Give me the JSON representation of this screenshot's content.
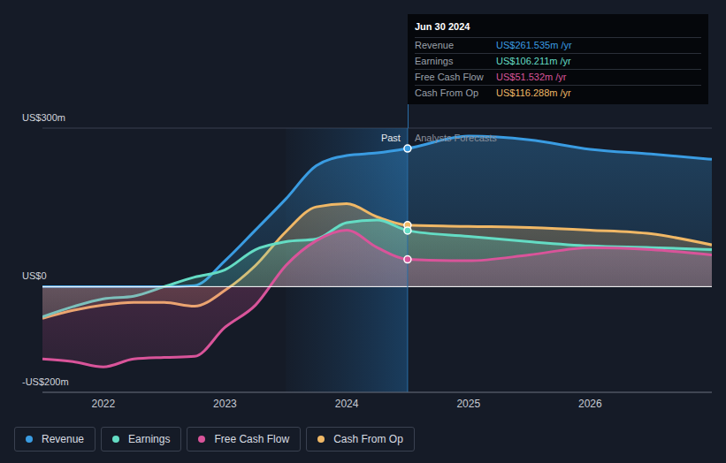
{
  "chart_data": {
    "type": "area",
    "x": [
      2021.5,
      2021.75,
      2022,
      2022.25,
      2022.5,
      2022.75,
      2023,
      2023.25,
      2023.5,
      2023.75,
      2024,
      2024.25,
      2024.5,
      2025,
      2025.5,
      2026,
      2026.5,
      2027
    ],
    "series": [
      {
        "name": "Revenue",
        "color": "#3a9ce2",
        "values": [
          0,
          0,
          0,
          0,
          0,
          2,
          49,
          107,
          166,
          229,
          248,
          253,
          261.5,
          285,
          278,
          260,
          251,
          241
        ]
      },
      {
        "name": "Earnings",
        "color": "#64dcc4",
        "values": [
          -57,
          -38,
          -23,
          -18,
          0,
          18,
          32,
          70,
          85,
          90,
          121,
          126,
          106.2,
          95,
          85,
          77,
          74,
          70
        ]
      },
      {
        "name": "Free Cash Flow",
        "color": "#d9549a",
        "values": [
          -137,
          -142,
          -152,
          -137,
          -134,
          -132,
          -77,
          -35,
          40,
          87,
          107,
          74,
          51.5,
          49,
          60,
          74,
          70,
          60
        ]
      },
      {
        "name": "Cash From Op",
        "color": "#f0b866",
        "values": [
          -60,
          -45,
          -35,
          -30,
          -30,
          -37,
          -7,
          40,
          104,
          151,
          157,
          132,
          116.3,
          114,
          112,
          107,
          100,
          79
        ]
      }
    ],
    "xlim": [
      2021.5,
      2027
    ],
    "xticks": [
      2022,
      2023,
      2024,
      2025,
      2026
    ],
    "ylim": [
      -200,
      300
    ],
    "yticks": [
      {
        "value": 300,
        "label": "US$300m"
      },
      {
        "value": 0,
        "label": "US$0"
      },
      {
        "value": -200,
        "label": "-US$200m"
      }
    ],
    "grid": true,
    "legend": "bottom",
    "past_region": [
      2023.5,
      2024.5
    ],
    "annotations": [
      {
        "text": "Past",
        "x": 2024.5
      },
      {
        "text": "Analysts Forecasts",
        "x": 2024.5
      }
    ],
    "tooltip": {
      "title": "Jun 30 2024",
      "rows": [
        {
          "name": "Revenue",
          "value": "US$261.535m /yr"
        },
        {
          "name": "Earnings",
          "value": "US$106.211m /yr"
        },
        {
          "name": "Free Cash Flow",
          "value": "US$51.532m /yr"
        },
        {
          "name": "Cash From Op",
          "value": "US$116.288m /yr"
        }
      ]
    }
  }
}
